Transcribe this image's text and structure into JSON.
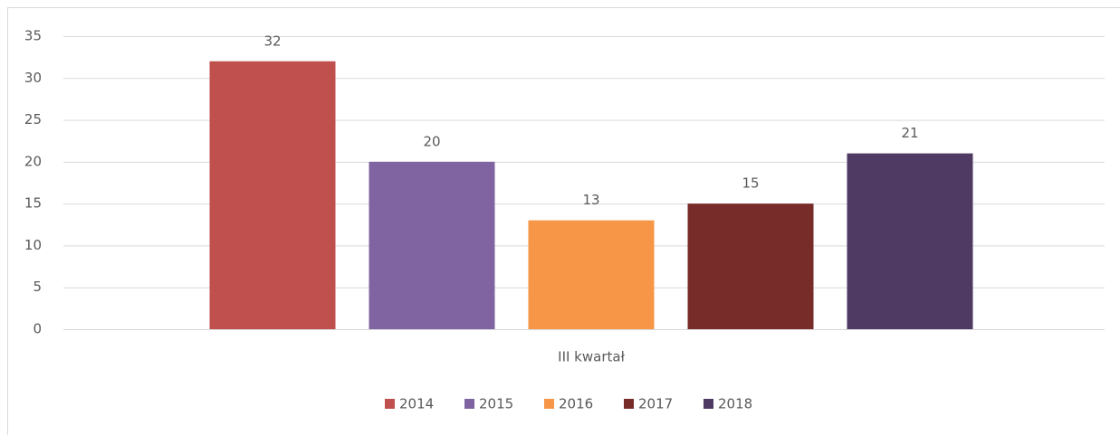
{
  "chart_data": {
    "type": "bar",
    "categories": [
      "III kwartał"
    ],
    "series": [
      {
        "name": "2014",
        "color": "#c0504d",
        "values": [
          32
        ]
      },
      {
        "name": "2015",
        "color": "#8064a2",
        "values": [
          20
        ]
      },
      {
        "name": "2016",
        "color": "#f79646",
        "values": [
          13
        ]
      },
      {
        "name": "2017",
        "color": "#772c2a",
        "values": [
          15
        ]
      },
      {
        "name": "2018",
        "color": "#4f3a63",
        "values": [
          21
        ]
      }
    ],
    "ylim": [
      0,
      35
    ],
    "yticks": [
      0,
      5,
      10,
      15,
      20,
      25,
      30,
      35
    ],
    "grid": true,
    "legend": "bottom"
  }
}
